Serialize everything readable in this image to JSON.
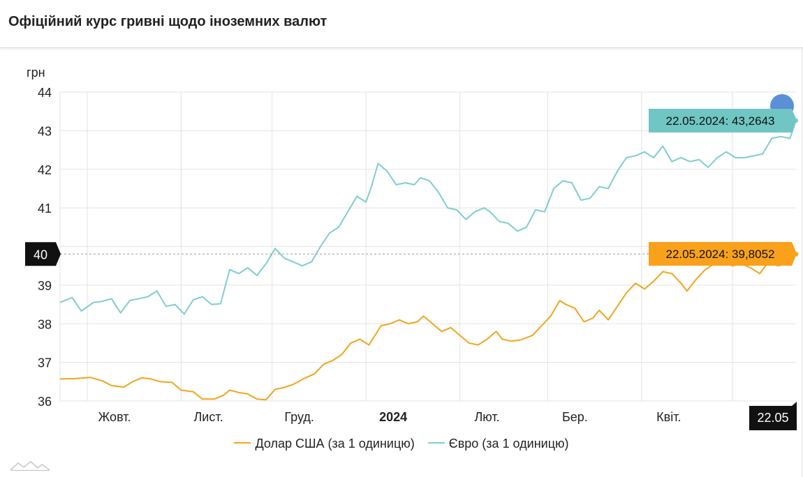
{
  "page": {
    "title": "Офіційний курс гривні щодо іноземних валют"
  },
  "colors": {
    "usd": "#f1a51d",
    "eur": "#7fcdce",
    "usd_callout": "#f9a11b",
    "eur_callout": "#70c6c3",
    "grid": "#e3e3e3",
    "marker": "#5b8fd8"
  },
  "chart_data": {
    "type": "line",
    "y_unit": "грн",
    "ylim": [
      36,
      44
    ],
    "yticks": [
      36,
      37,
      38,
      39,
      40,
      41,
      42,
      43,
      44
    ],
    "x_range": [
      "2023-09-22",
      "2024-05-22"
    ],
    "x_ticks": [
      {
        "date": "2023-10-10",
        "label": "Жовт.",
        "bold": false
      },
      {
        "date": "2023-11-10",
        "label": "Лист.",
        "bold": false
      },
      {
        "date": "2023-12-10",
        "label": "Груд.",
        "bold": false
      },
      {
        "date": "2024-01-10",
        "label": "2024",
        "bold": true
      },
      {
        "date": "2024-02-10",
        "label": "Лют.",
        "bold": false
      },
      {
        "date": "2024-03-10",
        "label": "Бер.",
        "bold": false
      },
      {
        "date": "2024-04-10",
        "label": "Квіт.",
        "bold": false
      }
    ],
    "grid_dates": [
      "2023-10-01",
      "2023-11-01",
      "2023-12-01",
      "2024-01-01",
      "2024-02-01",
      "2024-03-01",
      "2024-04-01",
      "2024-05-01"
    ],
    "series": [
      {
        "name": "Долар США (за 1 одиницю)",
        "key": "usd",
        "points": [
          [
            "2023-09-22",
            36.57
          ],
          [
            "2023-09-27",
            36.58
          ],
          [
            "2023-10-02",
            36.61
          ],
          [
            "2023-10-06",
            36.52
          ],
          [
            "2023-10-09",
            36.4
          ],
          [
            "2023-10-13",
            36.36
          ],
          [
            "2023-10-16",
            36.5
          ],
          [
            "2023-10-19",
            36.6
          ],
          [
            "2023-10-22",
            36.57
          ],
          [
            "2023-10-25",
            36.5
          ],
          [
            "2023-10-29",
            36.48
          ],
          [
            "2023-11-01",
            36.28
          ],
          [
            "2023-11-05",
            36.24
          ],
          [
            "2023-11-08",
            36.05
          ],
          [
            "2023-11-12",
            36.05
          ],
          [
            "2023-11-15",
            36.15
          ],
          [
            "2023-11-17",
            36.28
          ],
          [
            "2023-11-20",
            36.22
          ],
          [
            "2023-11-23",
            36.18
          ],
          [
            "2023-11-26",
            36.05
          ],
          [
            "2023-11-29",
            36.03
          ],
          [
            "2023-12-02",
            36.3
          ],
          [
            "2023-12-05",
            36.35
          ],
          [
            "2023-12-08",
            36.43
          ],
          [
            "2023-12-12",
            36.6
          ],
          [
            "2023-12-15",
            36.7
          ],
          [
            "2023-12-18",
            36.95
          ],
          [
            "2023-12-21",
            37.05
          ],
          [
            "2023-12-24",
            37.2
          ],
          [
            "2023-12-27",
            37.5
          ],
          [
            "2023-12-30",
            37.6
          ],
          [
            "2024-01-02",
            37.45
          ],
          [
            "2024-01-04",
            37.7
          ],
          [
            "2024-01-06",
            37.95
          ],
          [
            "2024-01-09",
            38.0
          ],
          [
            "2024-01-12",
            38.1
          ],
          [
            "2024-01-15",
            38.0
          ],
          [
            "2024-01-18",
            38.05
          ],
          [
            "2024-01-20",
            38.2
          ],
          [
            "2024-01-23",
            38.0
          ],
          [
            "2024-01-26",
            37.8
          ],
          [
            "2024-01-29",
            37.9
          ],
          [
            "2024-02-01",
            37.7
          ],
          [
            "2024-02-04",
            37.5
          ],
          [
            "2024-02-07",
            37.45
          ],
          [
            "2024-02-10",
            37.6
          ],
          [
            "2024-02-13",
            37.8
          ],
          [
            "2024-02-15",
            37.6
          ],
          [
            "2024-02-18",
            37.55
          ],
          [
            "2024-02-21",
            37.58
          ],
          [
            "2024-02-25",
            37.7
          ],
          [
            "2024-02-28",
            37.95
          ],
          [
            "2024-03-02",
            38.2
          ],
          [
            "2024-03-05",
            38.6
          ],
          [
            "2024-03-07",
            38.5
          ],
          [
            "2024-03-10",
            38.4
          ],
          [
            "2024-03-13",
            38.05
          ],
          [
            "2024-03-16",
            38.15
          ],
          [
            "2024-03-18",
            38.35
          ],
          [
            "2024-03-21",
            38.1
          ],
          [
            "2024-03-24",
            38.45
          ],
          [
            "2024-03-27",
            38.8
          ],
          [
            "2024-03-30",
            39.05
          ],
          [
            "2024-04-02",
            38.9
          ],
          [
            "2024-04-05",
            39.1
          ],
          [
            "2024-04-08",
            39.35
          ],
          [
            "2024-04-11",
            39.3
          ],
          [
            "2024-04-14",
            39.05
          ],
          [
            "2024-04-16",
            38.85
          ],
          [
            "2024-04-19",
            39.15
          ],
          [
            "2024-04-22",
            39.4
          ],
          [
            "2024-04-25",
            39.55
          ],
          [
            "2024-04-28",
            39.6
          ],
          [
            "2024-05-01",
            39.5
          ],
          [
            "2024-05-04",
            39.55
          ],
          [
            "2024-05-07",
            39.45
          ],
          [
            "2024-05-10",
            39.3
          ],
          [
            "2024-05-13",
            39.6
          ],
          [
            "2024-05-16",
            39.5
          ],
          [
            "2024-05-19",
            39.55
          ],
          [
            "2024-05-22",
            39.8052
          ]
        ],
        "last_label": "22.05.2024: 39,8052"
      },
      {
        "name": "Євро (за 1 одиницю)",
        "key": "eur",
        "points": [
          [
            "2023-09-22",
            38.55
          ],
          [
            "2023-09-26",
            38.68
          ],
          [
            "2023-09-29",
            38.33
          ],
          [
            "2023-10-03",
            38.55
          ],
          [
            "2023-10-06",
            38.58
          ],
          [
            "2023-10-09",
            38.65
          ],
          [
            "2023-10-12",
            38.28
          ],
          [
            "2023-10-15",
            38.6
          ],
          [
            "2023-10-18",
            38.65
          ],
          [
            "2023-10-21",
            38.7
          ],
          [
            "2023-10-24",
            38.85
          ],
          [
            "2023-10-27",
            38.45
          ],
          [
            "2023-10-30",
            38.5
          ],
          [
            "2023-11-02",
            38.25
          ],
          [
            "2023-11-05",
            38.62
          ],
          [
            "2023-11-08",
            38.7
          ],
          [
            "2023-11-11",
            38.5
          ],
          [
            "2023-11-14",
            38.52
          ],
          [
            "2023-11-17",
            39.4
          ],
          [
            "2023-11-20",
            39.3
          ],
          [
            "2023-11-23",
            39.45
          ],
          [
            "2023-11-26",
            39.25
          ],
          [
            "2023-11-29",
            39.55
          ],
          [
            "2023-12-02",
            39.95
          ],
          [
            "2023-12-05",
            39.7
          ],
          [
            "2023-12-08",
            39.6
          ],
          [
            "2023-12-11",
            39.5
          ],
          [
            "2023-12-14",
            39.6
          ],
          [
            "2023-12-17",
            40.0
          ],
          [
            "2023-12-20",
            40.35
          ],
          [
            "2023-12-23",
            40.5
          ],
          [
            "2023-12-26",
            40.9
          ],
          [
            "2023-12-29",
            41.3
          ],
          [
            "2024-01-01",
            41.15
          ],
          [
            "2024-01-03",
            41.6
          ],
          [
            "2024-01-05",
            42.15
          ],
          [
            "2024-01-08",
            41.95
          ],
          [
            "2024-01-11",
            41.6
          ],
          [
            "2024-01-14",
            41.65
          ],
          [
            "2024-01-17",
            41.6
          ],
          [
            "2024-01-19",
            41.78
          ],
          [
            "2024-01-22",
            41.7
          ],
          [
            "2024-01-25",
            41.4
          ],
          [
            "2024-01-28",
            41.0
          ],
          [
            "2024-01-31",
            40.95
          ],
          [
            "2024-02-03",
            40.7
          ],
          [
            "2024-02-06",
            40.9
          ],
          [
            "2024-02-09",
            41.0
          ],
          [
            "2024-02-11",
            40.9
          ],
          [
            "2024-02-14",
            40.65
          ],
          [
            "2024-02-17",
            40.6
          ],
          [
            "2024-02-20",
            40.4
          ],
          [
            "2024-02-23",
            40.5
          ],
          [
            "2024-02-26",
            40.95
          ],
          [
            "2024-02-29",
            40.9
          ],
          [
            "2024-03-03",
            41.5
          ],
          [
            "2024-03-06",
            41.7
          ],
          [
            "2024-03-09",
            41.65
          ],
          [
            "2024-03-12",
            41.2
          ],
          [
            "2024-03-15",
            41.25
          ],
          [
            "2024-03-18",
            41.55
          ],
          [
            "2024-03-21",
            41.5
          ],
          [
            "2024-03-24",
            41.95
          ],
          [
            "2024-03-27",
            42.3
          ],
          [
            "2024-03-30",
            42.35
          ],
          [
            "2024-04-02",
            42.45
          ],
          [
            "2024-04-05",
            42.3
          ],
          [
            "2024-04-08",
            42.6
          ],
          [
            "2024-04-11",
            42.2
          ],
          [
            "2024-04-14",
            42.3
          ],
          [
            "2024-04-17",
            42.2
          ],
          [
            "2024-04-20",
            42.25
          ],
          [
            "2024-04-23",
            42.05
          ],
          [
            "2024-04-26",
            42.3
          ],
          [
            "2024-04-29",
            42.45
          ],
          [
            "2024-05-02",
            42.3
          ],
          [
            "2024-05-05",
            42.3
          ],
          [
            "2024-05-08",
            42.35
          ],
          [
            "2024-05-11",
            42.4
          ],
          [
            "2024-05-14",
            42.8
          ],
          [
            "2024-05-17",
            42.85
          ],
          [
            "2024-05-20",
            42.8
          ],
          [
            "2024-05-22",
            43.2643
          ]
        ],
        "last_label": "22.05.2024: 43,2643"
      }
    ],
    "crosshair": {
      "y_label": "40",
      "x_label": "22.05"
    },
    "legend": "bottom-center",
    "grid": true
  },
  "legend": {
    "usd_label": "Долар США (за 1 одиницю)",
    "eur_label": "Євро (за 1 одиницю)"
  }
}
